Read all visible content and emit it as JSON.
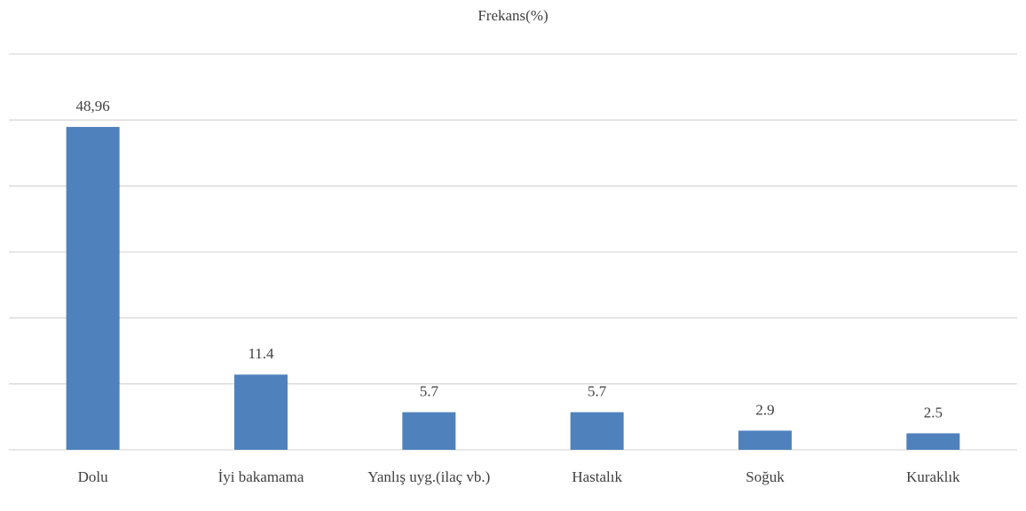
{
  "chart_data": {
    "type": "bar",
    "title": "Frekans(%)",
    "categories": [
      "Dolu",
      "İyi bakamama",
      "Yanlış uyg.(ilaç vb.)",
      "Hastalık",
      "Soğuk",
      "Kuraklık"
    ],
    "values": [
      48.96,
      11.4,
      5.7,
      5.7,
      2.9,
      2.5
    ],
    "value_labels": [
      "48,96",
      "11.4",
      "5.7",
      "5.7",
      "2.9",
      "2.5"
    ],
    "color": "#4f81bd",
    "ylim": [
      0,
      60
    ],
    "yticks": [
      0,
      10,
      20,
      30,
      40,
      50,
      60
    ],
    "grid": true
  }
}
